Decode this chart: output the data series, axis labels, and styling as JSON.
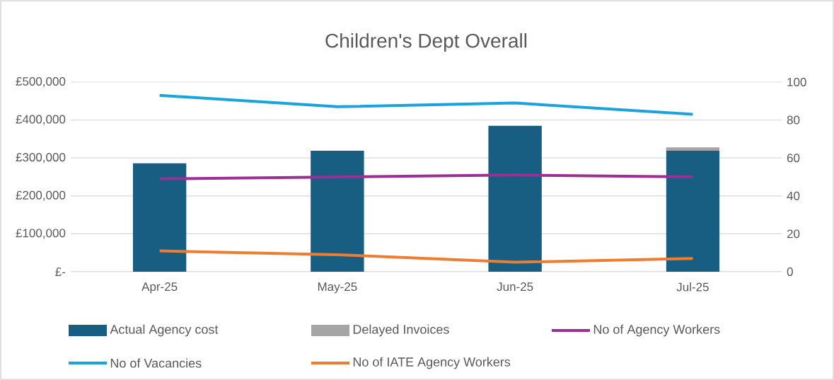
{
  "chart_data": {
    "type": "bar",
    "title": "Children's Dept Overall",
    "categories": [
      "Apr-25",
      "May-25",
      "Jun-25",
      "Jul-25"
    ],
    "stacked": true,
    "series": [
      {
        "name": "Actual Agency cost",
        "color": "#175e82",
        "values": [
          286000,
          319000,
          385000,
          319000
        ]
      },
      {
        "name": "Delayed Invoices",
        "color": "#a5a5a5",
        "values": [
          null,
          null,
          null,
          9000
        ]
      },
      {
        "name": "No of Agency Workers",
        "type": "line",
        "axis": "y2",
        "color": "#9b2f93",
        "values": [
          49,
          50,
          51,
          50
        ]
      },
      {
        "name": "No of Vacancies",
        "type": "line",
        "axis": "y2",
        "color": "#1aa3dc",
        "values": [
          93,
          87,
          89,
          83
        ]
      },
      {
        "name": "No of IATE Agency Workers",
        "type": "line",
        "axis": "y2",
        "color": "#ed7d31",
        "values": [
          11,
          9,
          5,
          7
        ]
      }
    ],
    "ylim": [
      0,
      500000
    ],
    "yticks": [
      {
        "value": 0,
        "label": "£-"
      },
      {
        "value": 100000,
        "label": "£100,000"
      },
      {
        "value": 200000,
        "label": "£200,000"
      },
      {
        "value": 300000,
        "label": "£300,000"
      },
      {
        "value": 400000,
        "label": "£400,000"
      },
      {
        "value": 500000,
        "label": "£500,000"
      }
    ],
    "y2lim": [
      0,
      100
    ],
    "y2ticks": [
      0,
      20,
      40,
      60,
      80,
      100
    ],
    "grid": "y",
    "legend": "bottom",
    "marker": "none",
    "line_style": "solid"
  }
}
